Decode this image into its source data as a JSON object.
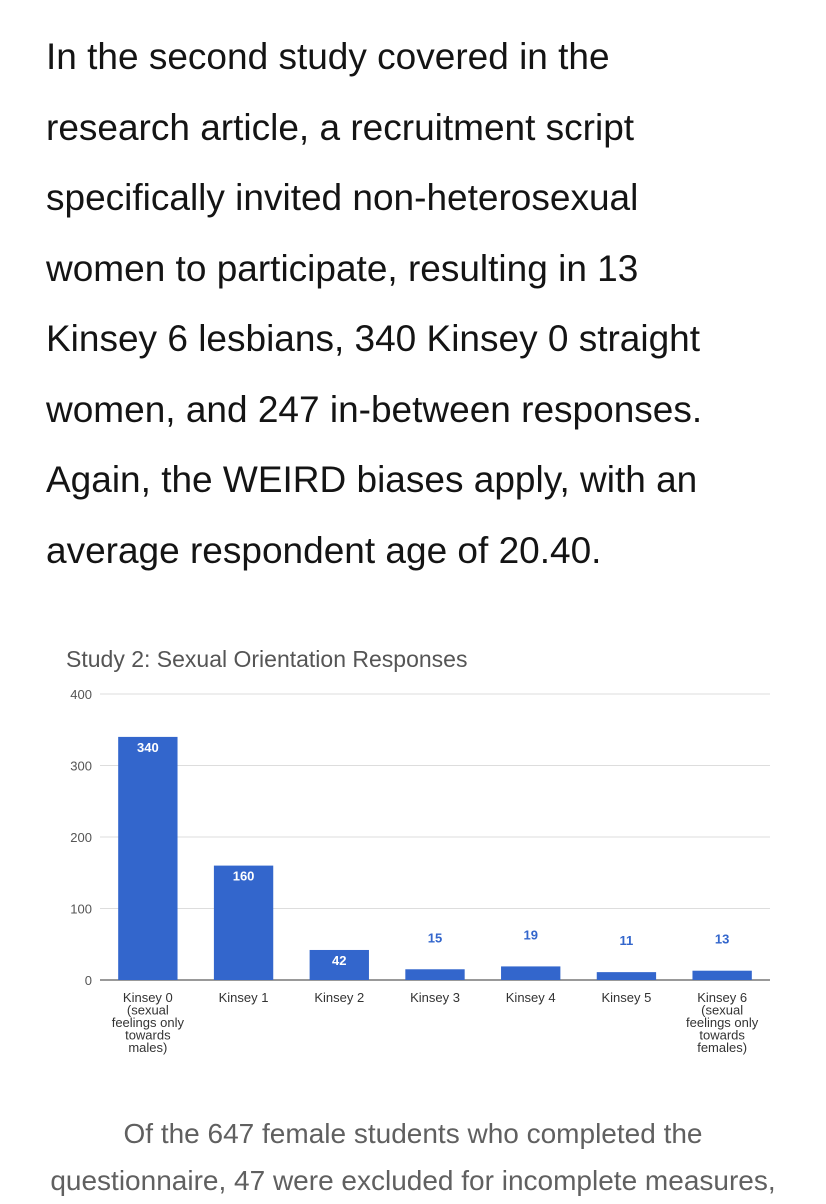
{
  "article": {
    "paragraph_lines": [
      "In the second study covered in the",
      "research article, a recruitment script",
      "specifically invited non-heterosexual",
      "women to participate, resulting in 13",
      "Kinsey 6 lesbians, 340 Kinsey 0 straight",
      "women, and 247 in-between responses.",
      "Again, the WEIRD biases apply, with an",
      "average respondent age of 20.40."
    ],
    "caption_lines": [
      "Of the 647 female students who completed the",
      "questionnaire, 47 were excluded for incomplete measures,"
    ]
  },
  "chart_data": {
    "type": "bar",
    "title": "Study 2: Sexual Orientation Responses",
    "xlabel": "",
    "ylabel": "",
    "ylim": [
      0,
      400
    ],
    "yticks": [
      0,
      100,
      200,
      300,
      400
    ],
    "grid": true,
    "legend": "none",
    "bar_color": "#3366cc",
    "categories": [
      [
        "Kinsey 0",
        "(sexual",
        "feelings only",
        "towards",
        "males)"
      ],
      [
        "Kinsey 1"
      ],
      [
        "Kinsey 2"
      ],
      [
        "Kinsey 3"
      ],
      [
        "Kinsey 4"
      ],
      [
        "Kinsey 5"
      ],
      [
        "Kinsey 6",
        "(sexual",
        "feelings only",
        "towards",
        "females)"
      ]
    ],
    "values": [
      340,
      160,
      42,
      15,
      19,
      11,
      13
    ]
  }
}
